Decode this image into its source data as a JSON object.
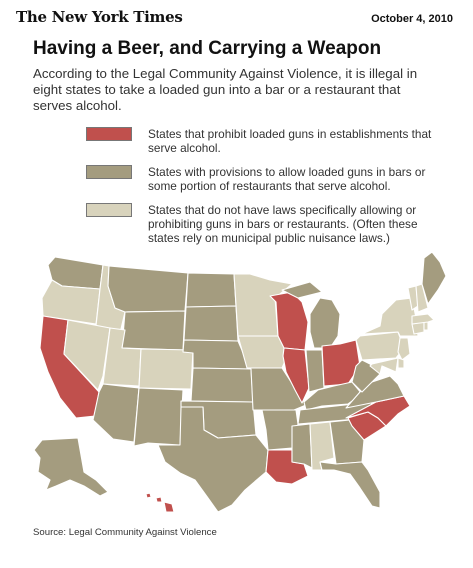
{
  "header": {
    "publication": "The New York Times",
    "date": "October 4, 2010"
  },
  "title": "Having a Beer, and Carrying a Weapon",
  "intro": "According to the Legal Community Against Violence, it is illegal in eight states to take a loaded gun into a bar or a restaurant that serves alcohol.",
  "legend": [
    {
      "category": "prohibit",
      "label": "States that prohibit loaded guns in establishments that serve alcohol.",
      "color": "#c0504d"
    },
    {
      "category": "allow",
      "label": "States with provisions to allow loaded guns in bars or some portion of restaurants that serve alcohol.",
      "color": "#a49c7f"
    },
    {
      "category": "no_law",
      "label": "States that do not have laws specifically allowing or prohibiting guns in bars or restaurants. (Often these states rely on municipal public nuisance laws.)",
      "color": "#d8d3bc"
    }
  ],
  "colors": {
    "prohibit": "#c0504d",
    "allow": "#a49c7f",
    "no_law": "#d8d3bc",
    "border": "#ffffff",
    "background": "#ffffff"
  },
  "map_data": {
    "prohibit": [
      "CA",
      "WI",
      "IL",
      "OH",
      "LA",
      "SC",
      "NC",
      "HI"
    ],
    "allow": [
      "WA",
      "MT",
      "ND",
      "WY",
      "SD",
      "NE",
      "KS",
      "OK",
      "TX",
      "NM",
      "AZ",
      "MO",
      "AR",
      "MS",
      "TN",
      "KY",
      "MI",
      "IN",
      "VA",
      "WV",
      "GA",
      "FL",
      "AK",
      "ME"
    ],
    "no_law": [
      "OR",
      "ID",
      "NV",
      "UT",
      "CO",
      "MN",
      "IA",
      "AL",
      "PA",
      "NY",
      "VT",
      "NH",
      "MA",
      "CT",
      "RI",
      "NJ",
      "DE",
      "MD"
    ]
  },
  "source": "Source: Legal Community Against Violence"
}
